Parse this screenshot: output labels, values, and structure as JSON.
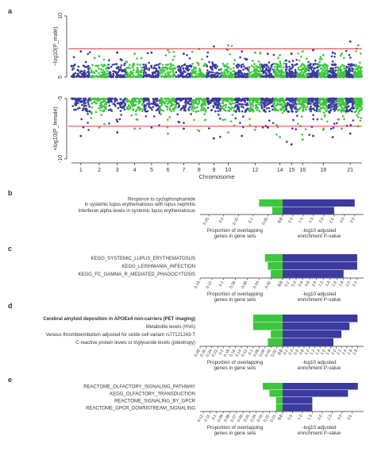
{
  "colors": {
    "green": "#3ec63e",
    "blue": "#3a3aa0",
    "threshold": "#e02020",
    "axis": "#333333"
  },
  "chart_data": [
    {
      "panel": "a",
      "type": "scatter",
      "subtype": "miami",
      "xlabel": "Chromosome",
      "chromosome_ticks": [
        "1",
        "2",
        "3",
        "4",
        "5",
        "6",
        "7",
        "8",
        "9",
        "10",
        "12",
        "14",
        "15",
        "16",
        "18",
        "21"
      ],
      "chromosome_count": 22,
      "top": {
        "ylabel": "−log10(P_male)",
        "ylim": [
          5,
          10
        ],
        "yticks": [
          "5",
          "10"
        ],
        "threshold": 7.3,
        "base": 5.0
      },
      "bottom": {
        "ylabel": "+log10(P_female)",
        "ylim": [
          -10,
          -5
        ],
        "yticks": [
          "-5",
          "-10"
        ],
        "threshold": -7.3,
        "base": -5.0
      },
      "peaks": [
        {
          "chr": 1,
          "top": 7.1,
          "bottom": -8.1
        },
        {
          "chr": 2,
          "top": 6.7,
          "bottom": -7.4
        },
        {
          "chr": 3,
          "top": 7.0,
          "bottom": -7.8
        },
        {
          "chr": 4,
          "top": 6.9,
          "bottom": -7.5
        },
        {
          "chr": 5,
          "top": 7.0,
          "bottom": -7.4
        },
        {
          "chr": 6,
          "top": 7.2,
          "bottom": -7.9
        },
        {
          "chr": 7,
          "top": 6.9,
          "bottom": -7.5
        },
        {
          "chr": 8,
          "top": 7.3,
          "bottom": -7.7
        },
        {
          "chr": 9,
          "top": 7.5,
          "bottom": -8.3
        },
        {
          "chr": 10,
          "top": 7.6,
          "bottom": -7.8
        },
        {
          "chr": 11,
          "top": 7.1,
          "bottom": -8.1
        },
        {
          "chr": 12,
          "top": 7.0,
          "bottom": -7.6
        },
        {
          "chr": 13,
          "top": 6.9,
          "bottom": -7.4
        },
        {
          "chr": 14,
          "top": 6.8,
          "bottom": -8.2
        },
        {
          "chr": 15,
          "top": 6.9,
          "bottom": -8.8
        },
        {
          "chr": 16,
          "top": 7.1,
          "bottom": -8.4
        },
        {
          "chr": 17,
          "top": 7.2,
          "bottom": -8.1
        },
        {
          "chr": 18,
          "top": 6.8,
          "bottom": -7.6
        },
        {
          "chr": 19,
          "top": 7.0,
          "bottom": -8.2
        },
        {
          "chr": 20,
          "top": 6.9,
          "bottom": -7.5
        },
        {
          "chr": 21,
          "top": 7.9,
          "bottom": -7.9
        },
        {
          "chr": 22,
          "top": 7.6,
          "bottom": -7.3
        }
      ]
    },
    {
      "panel": "b",
      "type": "bar",
      "categories": [
        "Response to cyclophosphamide\nin systemic lupus erythematosus with lupus nephritis",
        "Interferon alpha levels in systemic lupus erythematosus"
      ],
      "proportion": [
        0.08,
        0.035
      ],
      "neglog10p": [
        3.5,
        2.5
      ],
      "prop_ticks": [
        "0.25",
        "0.2",
        "0.15",
        "0.1",
        "0.05",
        "0.0"
      ],
      "prop_xlim": [
        0.28,
        0
      ],
      "p_ticks": [
        "0.0",
        "0.5",
        "1.0",
        "1.5",
        "2.0",
        "2.5",
        "3.0",
        "3.5"
      ],
      "p_xlim": [
        0,
        3.7
      ],
      "xlabel_left": "Proportion of overlapping\ngenes in gene sets",
      "xlabel_right": "-log10 adjusted\nenrichment P-value"
    },
    {
      "panel": "c",
      "type": "bar",
      "categories": [
        "KEGG_SYSTEMIC_LUPUS_ERYTHEMATOSUS",
        "KEGG_LEISHMANIA_INFECTION",
        "KEGG_FC_GAMMA_R_MEDIATED_PHAGOCYTOSIS"
      ],
      "proportion": [
        0.03,
        0.025,
        0.02
      ],
      "neglog10p": [
        2.2,
        2.2,
        1.8
      ],
      "prop_ticks": [
        "0.14",
        "0.12",
        "0.1",
        "0.08",
        "0.06",
        "0.04",
        "0.02",
        "0.0"
      ],
      "prop_xlim": [
        0.14,
        0
      ],
      "p_ticks": [
        "0.0",
        "0.2",
        "0.4",
        "0.6",
        "0.8",
        "1.0",
        "1.2",
        "1.4",
        "1.6",
        "1.8",
        "2.0",
        "2.2"
      ],
      "p_xlim": [
        0,
        2.25
      ],
      "xlabel_left": "Proportion of overlapping\ngenes in gene sets",
      "xlabel_right": "-log10 adjusted\nenrichment P-value"
    },
    {
      "panel": "d",
      "type": "bar",
      "categories": [
        "Cerebral amyloid deposition in APOEe4 non-carriers (PET imaging)",
        "Metabolite levels (HVA)",
        "Venous thromboembolism adjusted for sickle cell variant rs77121243-T",
        "C-reactive protein levels or triglyceride levels (pleiotropy)"
      ],
      "bold_first": true,
      "proportion": [
        0.1,
        0.1,
        0.04,
        0.05
      ],
      "neglog10p": [
        2.8,
        2.5,
        2.2,
        1.9
      ],
      "prop_ticks": [
        "0.28",
        "0.26",
        "0.24",
        "0.22",
        "0.2",
        "0.18",
        "0.16",
        "0.14",
        "0.12",
        "0.1",
        "0.08",
        "0.06",
        "0.04",
        "0.02",
        "0.0"
      ],
      "prop_xlim": [
        0.28,
        0
      ],
      "p_ticks": [
        "0.0",
        "0.2",
        "0.4",
        "0.6",
        "0.8",
        "1.0",
        "1.2",
        "1.4",
        "1.6",
        "1.8",
        "2.0",
        "2.2",
        "2.4",
        "2.6",
        "2.8"
      ],
      "p_xlim": [
        0,
        2.85
      ],
      "xlabel_left": "Proportion of overlapping\ngenes in gene sets",
      "xlabel_right": "-log10 adjusted\nenrichment P-value"
    },
    {
      "panel": "e",
      "type": "bar",
      "categories": [
        "REACTOME_OLFACTORY_SIGNALING_PATHWAY",
        "KEGG_OLFACTORY_TRANSDUCTION",
        "REACTOME_SIGNALING_BY_GPCR",
        "REACTOME_GPCR_DOWNSTREAM_SIGNALING"
      ],
      "proportion": [
        0.03,
        0.02,
        0.01,
        0.01
      ],
      "neglog10p": [
        3.8,
        3.3,
        1.5,
        1.5
      ],
      "prop_ticks": [
        "0.12",
        "0.11",
        "0.1",
        "0.09",
        "0.08",
        "0.07",
        "0.06",
        "0.05",
        "0.04",
        "0.03",
        "0.02",
        "0.01",
        "0.0"
      ],
      "prop_xlim": [
        0.125,
        0
      ],
      "p_ticks": [
        "0.0",
        "0.5",
        "1.0",
        "1.5",
        "2.0",
        "2.5",
        "3.0",
        "3.5"
      ],
      "p_xlim": [
        0,
        3.85
      ],
      "xlabel_left": "Proportion of overlapping\ngenes in gene sets",
      "xlabel_right": "-log10 adjusted\nenrichment P-value"
    }
  ]
}
